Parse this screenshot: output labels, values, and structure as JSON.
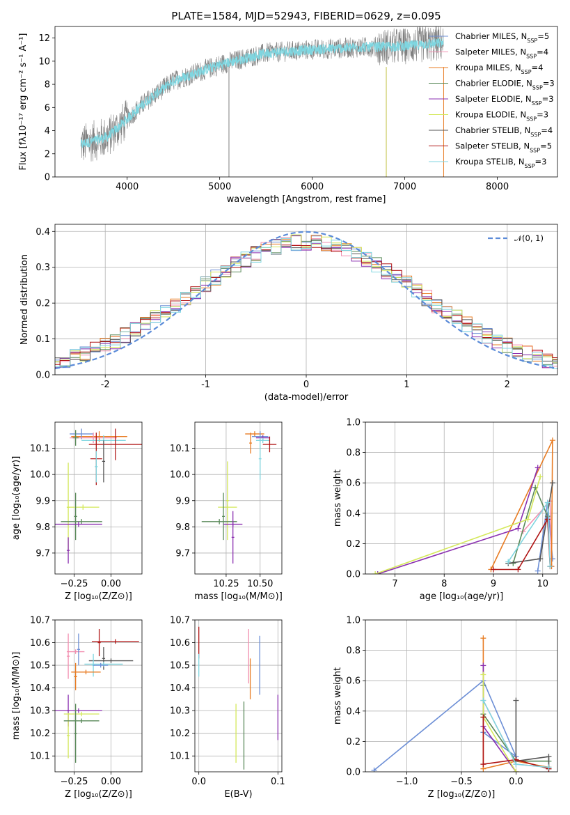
{
  "figure": {
    "title": "PLATE=1584, MJD=52943, FIBERID=0629, z=0.095"
  },
  "models": [
    {
      "name": "Chabrier MILES, N$SSP=5",
      "label_main": "Chabrier MILES, N",
      "label_sub": "SSP",
      "label_tail": "=5",
      "color": "#6d8fd6"
    },
    {
      "name": "Salpeter MILES",
      "label_main": "Salpeter MILES, N",
      "label_sub": "SSP",
      "label_tail": "=4",
      "color": "#f28fb0"
    },
    {
      "name": "Kroupa MILES",
      "label_main": "Kroupa MILES, N",
      "label_sub": "SSP",
      "label_tail": "=4",
      "color": "#e87c23"
    },
    {
      "name": "Chabrier ELODIE",
      "label_main": "Chabrier ELODIE, N",
      "label_sub": "SSP",
      "label_tail": "=3",
      "color": "#5a8a5a"
    },
    {
      "name": "Salpeter ELODIE",
      "label_main": "Salpeter ELODIE, N",
      "label_sub": "SSP",
      "label_tail": "=3",
      "color": "#8a2fb0"
    },
    {
      "name": "Kroupa ELODIE",
      "label_main": "Kroupa ELODIE, N",
      "label_sub": "SSP",
      "label_tail": "=3",
      "color": "#d4e85a"
    },
    {
      "name": "Chabrier STELIB",
      "label_main": "Chabrier STELIB, N",
      "label_sub": "SSP",
      "label_tail": "=4",
      "color": "#555555"
    },
    {
      "name": "Salpeter STELIB",
      "label_main": "Salpeter STELIB, N",
      "label_sub": "SSP",
      "label_tail": "=5",
      "color": "#b01515"
    },
    {
      "name": "Kroupa STELIB",
      "label_main": "Kroupa STELIB, N",
      "label_sub": "SSP",
      "label_tail": "=3",
      "color": "#7fd6e0"
    }
  ],
  "chart_data": [
    {
      "id": "spectrum",
      "type": "line",
      "xlabel": "wavelength [Angstrom, rest frame]",
      "ylabel": "Flux [fλ10⁻¹⁷ erg cm⁻² s⁻¹ A⁻¹]",
      "xlim": [
        3220,
        8650
      ],
      "ylim": [
        0,
        13
      ],
      "xticks": [
        4000,
        5000,
        6000,
        7000,
        8000
      ],
      "yticks": [
        0,
        2,
        4,
        6,
        8,
        10,
        12
      ],
      "x_range": [
        3500,
        7420
      ],
      "data_color": "#808080",
      "model_color": "#7fd6e0",
      "continuum_knots": [
        [
          3500,
          2.8
        ],
        [
          3800,
          3.5
        ],
        [
          4000,
          5.0
        ],
        [
          4200,
          6.5
        ],
        [
          4500,
          8.3
        ],
        [
          5000,
          9.7
        ],
        [
          5500,
          10.7
        ],
        [
          6000,
          11.0
        ],
        [
          6500,
          11.2
        ],
        [
          7000,
          11.3
        ],
        [
          7420,
          11.6
        ]
      ],
      "grid": false
    },
    {
      "id": "residual_hist",
      "type": "histogram",
      "xlabel": "(data-model)/error",
      "ylabel": "Normed distribution",
      "xlim": [
        -2.5,
        2.5
      ],
      "ylim": [
        0,
        0.42
      ],
      "xticks": [
        -2,
        -1,
        0,
        1,
        2
      ],
      "yticks": [
        0,
        0.1,
        0.2,
        0.3,
        0.4
      ],
      "bin_width": 0.1,
      "reference_legend": "𝒩(0, 1)",
      "reference_color": "#5b8bd8",
      "grid": true
    },
    {
      "id": "age_vs_Z",
      "type": "errorbar",
      "xlabel": "Z [log₁₀(Z/Z⊙)]",
      "ylabel": "age  [log₁₀(age/yr)]",
      "xlim": [
        -0.38,
        0.21
      ],
      "ylim": [
        9.62,
        10.2
      ],
      "xticks": [
        -0.25,
        0.0
      ],
      "xtick_labels": [
        "−0.25",
        "0.00"
      ],
      "yticks": [
        9.7,
        9.8,
        9.9,
        10.0,
        10.1
      ],
      "points": [
        {
          "x": -0.08,
          "y": 10.145,
          "ex": 0.19,
          "ey": 0.02,
          "c": 2
        },
        {
          "x": -0.2,
          "y": 10.155,
          "ex": 0.08,
          "ey": 0.02,
          "c": 0
        },
        {
          "x": -0.12,
          "y": 10.14,
          "ex": 0.16,
          "ey": 0.02,
          "c": 1
        },
        {
          "x": -0.05,
          "y": 10.13,
          "ex": 0.15,
          "ey": 0.02,
          "c": 8
        },
        {
          "x": -0.24,
          "y": 10.14,
          "ex": 0.02,
          "ey": 0.03,
          "c": 3
        },
        {
          "x": 0.03,
          "y": 10.115,
          "ex": 0.18,
          "ey": 0.06,
          "c": 7
        },
        {
          "x": -0.1,
          "y": 10.06,
          "ex": 0.04,
          "ey": 0.1,
          "c": 7
        },
        {
          "x": -0.05,
          "y": 10.05,
          "ex": 0.01,
          "ey": 0.08,
          "c": 6
        },
        {
          "x": -0.1,
          "y": 10.03,
          "ex": 0.01,
          "ey": 0.06,
          "c": 8
        },
        {
          "x": -0.29,
          "y": 9.875,
          "ex": 0.01,
          "ey": 0.17,
          "c": 5
        },
        {
          "x": -0.19,
          "y": 9.875,
          "ex": 0.11,
          "ey": 0.01,
          "c": 5
        },
        {
          "x": -0.24,
          "y": 9.84,
          "ex": 0.01,
          "ey": 0.09,
          "c": 3
        },
        {
          "x": -0.2,
          "y": 9.82,
          "ex": 0.14,
          "ey": 0.01,
          "c": 3
        },
        {
          "x": -0.22,
          "y": 9.81,
          "ex": 0.16,
          "ey": 0.01,
          "c": 4
        },
        {
          "x": -0.29,
          "y": 9.71,
          "ex": 0.01,
          "ey": 0.05,
          "c": 4
        }
      ]
    },
    {
      "id": "age_vs_mass",
      "type": "errorbar",
      "xlabel": "mass [log₁₀(M/M⊙)]",
      "ylabel": "",
      "xlim": [
        10.02,
        10.66
      ],
      "ylim": [
        9.62,
        10.2
      ],
      "xticks": [
        10.25,
        10.5
      ],
      "xtick_labels": [
        "10.25",
        "10.50"
      ],
      "yticks": [
        9.7,
        9.8,
        9.9,
        10.0,
        10.1
      ],
      "points": [
        {
          "x": 10.46,
          "y": 10.155,
          "ex": 0.07,
          "ey": 0.01,
          "c": 2
        },
        {
          "x": 10.5,
          "y": 10.145,
          "ex": 0.06,
          "ey": 0.02,
          "c": 0
        },
        {
          "x": 10.52,
          "y": 10.14,
          "ex": 0.05,
          "ey": 0.01,
          "c": 4
        },
        {
          "x": 10.52,
          "y": 10.13,
          "ex": 0.05,
          "ey": 0.01,
          "c": 8
        },
        {
          "x": 10.57,
          "y": 10.115,
          "ex": 0.05,
          "ey": 0.03,
          "c": 7
        },
        {
          "x": 10.43,
          "y": 10.12,
          "ex": 0.01,
          "ey": 0.04,
          "c": 2
        },
        {
          "x": 10.5,
          "y": 10.06,
          "ex": 0.01,
          "ey": 0.08,
          "c": 8
        },
        {
          "x": 10.26,
          "y": 9.875,
          "ex": 0.07,
          "ey": 0.01,
          "c": 5
        },
        {
          "x": 10.26,
          "y": 9.9,
          "ex": 0.01,
          "ey": 0.15,
          "c": 5
        },
        {
          "x": 10.2,
          "y": 9.82,
          "ex": 0.13,
          "ey": 0.01,
          "c": 3
        },
        {
          "x": 10.23,
          "y": 9.84,
          "ex": 0.01,
          "ey": 0.09,
          "c": 3
        },
        {
          "x": 10.3,
          "y": 9.81,
          "ex": 0.07,
          "ey": 0.01,
          "c": 4
        },
        {
          "x": 10.3,
          "y": 9.76,
          "ex": 0.01,
          "ey": 0.1,
          "c": 4
        }
      ]
    },
    {
      "id": "weight_vs_age",
      "type": "line",
      "xlabel": "age  [log₁₀(age/yr)]",
      "ylabel": "mass weight",
      "xlim": [
        6.4,
        10.3
      ],
      "ylim": [
        0,
        1.0
      ],
      "xticks": [
        7,
        8,
        9,
        10
      ],
      "yticks": [
        0,
        0.2,
        0.4,
        0.6,
        0.8,
        1.0
      ],
      "series": [
        {
          "c": 0,
          "points": [
            [
              9.9,
              0.02
            ],
            [
              10.1,
              0.47
            ],
            [
              10.2,
              0.1
            ]
          ]
        },
        {
          "c": 1,
          "points": [
            [
              9.6,
              0.28
            ],
            [
              10.15,
              0.48
            ],
            [
              10.18,
              0.05
            ]
          ]
        },
        {
          "c": 2,
          "points": [
            [
              8.95,
              0.03
            ],
            [
              10.2,
              0.88
            ],
            [
              10.18,
              0.05
            ]
          ]
        },
        {
          "c": 3,
          "points": [
            [
              9.4,
              0.07
            ],
            [
              9.85,
              0.57
            ],
            [
              10.1,
              0.38
            ]
          ]
        },
        {
          "c": 4,
          "points": [
            [
              6.65,
              0.0
            ],
            [
              9.5,
              0.3
            ],
            [
              9.9,
              0.7
            ]
          ]
        },
        {
          "c": 5,
          "points": [
            [
              6.6,
              0.0
            ],
            [
              9.7,
              0.36
            ],
            [
              9.95,
              0.64
            ]
          ]
        },
        {
          "c": 6,
          "points": [
            [
              9.3,
              0.07
            ],
            [
              9.95,
              0.1
            ],
            [
              10.2,
              0.6
            ]
          ]
        },
        {
          "c": 7,
          "points": [
            [
              9.0,
              0.03
            ],
            [
              9.5,
              0.03
            ],
            [
              10.1,
              0.36
            ],
            [
              10.15,
              0.05
            ]
          ]
        },
        {
          "c": 8,
          "points": [
            [
              9.3,
              0.08
            ],
            [
              10.1,
              0.47
            ],
            [
              10.15,
              0.05
            ]
          ]
        }
      ]
    },
    {
      "id": "mass_vs_Z",
      "type": "errorbar",
      "xlabel": "Z [log₁₀(Z/Z⊙)]",
      "ylabel": "mass [log₁₀(M/M⊙)]",
      "xlim": [
        -0.38,
        0.21
      ],
      "ylim": [
        10.03,
        10.7
      ],
      "xticks": [
        -0.25,
        0.0
      ],
      "xtick_labels": [
        "−0.25",
        "0.00"
      ],
      "yticks": [
        10.1,
        10.2,
        10.3,
        10.4,
        10.5,
        10.6,
        10.7
      ],
      "points": [
        {
          "x": 0.03,
          "y": 10.605,
          "ex": 0.16,
          "ey": 0.01,
          "c": 7
        },
        {
          "x": -0.08,
          "y": 10.6,
          "ex": 0.01,
          "ey": 0.06,
          "c": 7
        },
        {
          "x": -0.24,
          "y": 10.56,
          "ex": 0.06,
          "ey": 0.01,
          "c": 1
        },
        {
          "x": -0.29,
          "y": 10.54,
          "ex": 0.01,
          "ey": 0.1,
          "c": 1
        },
        {
          "x": -0.22,
          "y": 10.57,
          "ex": 0.01,
          "ey": 0.07,
          "c": 0
        },
        {
          "x": 0.0,
          "y": 10.52,
          "ex": 0.15,
          "ey": 0.01,
          "c": 6
        },
        {
          "x": -0.05,
          "y": 10.53,
          "ex": 0.01,
          "ey": 0.05,
          "c": 6
        },
        {
          "x": -0.05,
          "y": 10.505,
          "ex": 0.13,
          "ey": 0.01,
          "c": 8
        },
        {
          "x": -0.12,
          "y": 10.5,
          "ex": 0.01,
          "ey": 0.05,
          "c": 8
        },
        {
          "x": -0.07,
          "y": 10.5,
          "ex": 0.05,
          "ey": 0.01,
          "c": 0
        },
        {
          "x": -0.17,
          "y": 10.47,
          "ex": 0.1,
          "ey": 0.01,
          "c": 2
        },
        {
          "x": -0.24,
          "y": 10.45,
          "ex": 0.01,
          "ey": 0.06,
          "c": 2
        },
        {
          "x": -0.22,
          "y": 10.3,
          "ex": 0.16,
          "ey": 0.01,
          "c": 4
        },
        {
          "x": -0.29,
          "y": 10.3,
          "ex": 0.01,
          "ey": 0.07,
          "c": 4
        },
        {
          "x": -0.2,
          "y": 10.285,
          "ex": 0.12,
          "ey": 0.01,
          "c": 5
        },
        {
          "x": -0.29,
          "y": 10.19,
          "ex": 0.01,
          "ey": 0.1,
          "c": 5
        },
        {
          "x": -0.2,
          "y": 10.255,
          "ex": 0.12,
          "ey": 0.01,
          "c": 3
        },
        {
          "x": -0.24,
          "y": 10.2,
          "ex": 0.01,
          "ey": 0.13,
          "c": 3
        }
      ]
    },
    {
      "id": "mass_vs_ebv",
      "type": "errorbar",
      "xlabel": "E(B-V)",
      "ylabel": "",
      "xlim": [
        -0.005,
        0.105
      ],
      "ylim": [
        10.03,
        10.7
      ],
      "xticks": [
        0.0,
        0.1
      ],
      "xtick_labels": [
        "0.0",
        "0.1"
      ],
      "yticks": [
        10.1,
        10.2,
        10.3,
        10.4,
        10.5,
        10.6,
        10.7
      ],
      "points": [
        {
          "x": 0.0,
          "y": 10.6,
          "ex": 0,
          "ey": 0.07,
          "c": 7
        },
        {
          "x": 0.0,
          "y": 10.5,
          "ex": 0,
          "ey": 0.05,
          "c": 8
        },
        {
          "x": 0.063,
          "y": 10.54,
          "ex": 0,
          "ey": 0.12,
          "c": 1
        },
        {
          "x": 0.065,
          "y": 10.44,
          "ex": 0,
          "ey": 0.09,
          "c": 2
        },
        {
          "x": 0.077,
          "y": 10.5,
          "ex": 0,
          "ey": 0.13,
          "c": 0
        },
        {
          "x": 0.047,
          "y": 10.2,
          "ex": 0,
          "ey": 0.13,
          "c": 5
        },
        {
          "x": 0.057,
          "y": 10.19,
          "ex": 0,
          "ey": 0.15,
          "c": 3
        },
        {
          "x": 0.1,
          "y": 10.27,
          "ex": 0,
          "ey": 0.1,
          "c": 4
        }
      ]
    },
    {
      "id": "weight_vs_Z",
      "type": "line",
      "xlabel": "Z [log₁₀(Z/Z⊙)]",
      "ylabel": "mass weight",
      "xlim": [
        -1.38,
        0.38
      ],
      "ylim": [
        0,
        1.0
      ],
      "xticks": [
        -1.0,
        -0.5,
        0.0
      ],
      "xtick_labels": [
        "−1.0",
        "−0.5",
        "0.0"
      ],
      "yticks": [
        0,
        0.2,
        0.4,
        0.6,
        0.8,
        1.0
      ],
      "series": [
        {
          "c": 0,
          "points": [
            [
              -1.3,
              0.01
            ],
            [
              -0.3,
              0.6
            ],
            [
              0.0,
              0.1
            ],
            [
              -0.3,
              0.26
            ]
          ]
        },
        {
          "c": 1,
          "points": [
            [
              -0.3,
              0.47
            ],
            [
              0.0,
              0.05
            ],
            [
              0.3,
              0.03
            ]
          ]
        },
        {
          "c": 2,
          "points": [
            [
              -0.3,
              0.88
            ],
            [
              -0.3,
              0.02
            ],
            [
              0.0,
              0.07
            ],
            [
              0.3,
              0.03
            ]
          ]
        },
        {
          "c": 3,
          "points": [
            [
              -0.3,
              0.57
            ],
            [
              -0.3,
              0.38
            ],
            [
              0.0,
              0.07
            ],
            [
              0.3,
              0.07
            ]
          ]
        },
        {
          "c": 4,
          "points": [
            [
              -0.3,
              0.7
            ],
            [
              -0.3,
              0.3
            ],
            [
              0.0,
              0.0
            ]
          ]
        },
        {
          "c": 5,
          "points": [
            [
              -0.3,
              0.64
            ],
            [
              -0.3,
              0.36
            ],
            [
              0.0,
              0.0
            ]
          ]
        },
        {
          "c": 6,
          "points": [
            [
              0.0,
              0.47
            ],
            [
              0.0,
              0.07
            ],
            [
              0.3,
              0.1
            ],
            [
              0.3,
              0.02
            ]
          ]
        },
        {
          "c": 7,
          "points": [
            [
              -0.3,
              0.36
            ],
            [
              -0.3,
              0.05
            ],
            [
              0.0,
              0.08
            ],
            [
              0.3,
              0.02
            ]
          ]
        },
        {
          "c": 8,
          "points": [
            [
              -0.3,
              0.47
            ],
            [
              0.0,
              0.05
            ],
            [
              0.3,
              0.03
            ]
          ]
        }
      ]
    }
  ]
}
